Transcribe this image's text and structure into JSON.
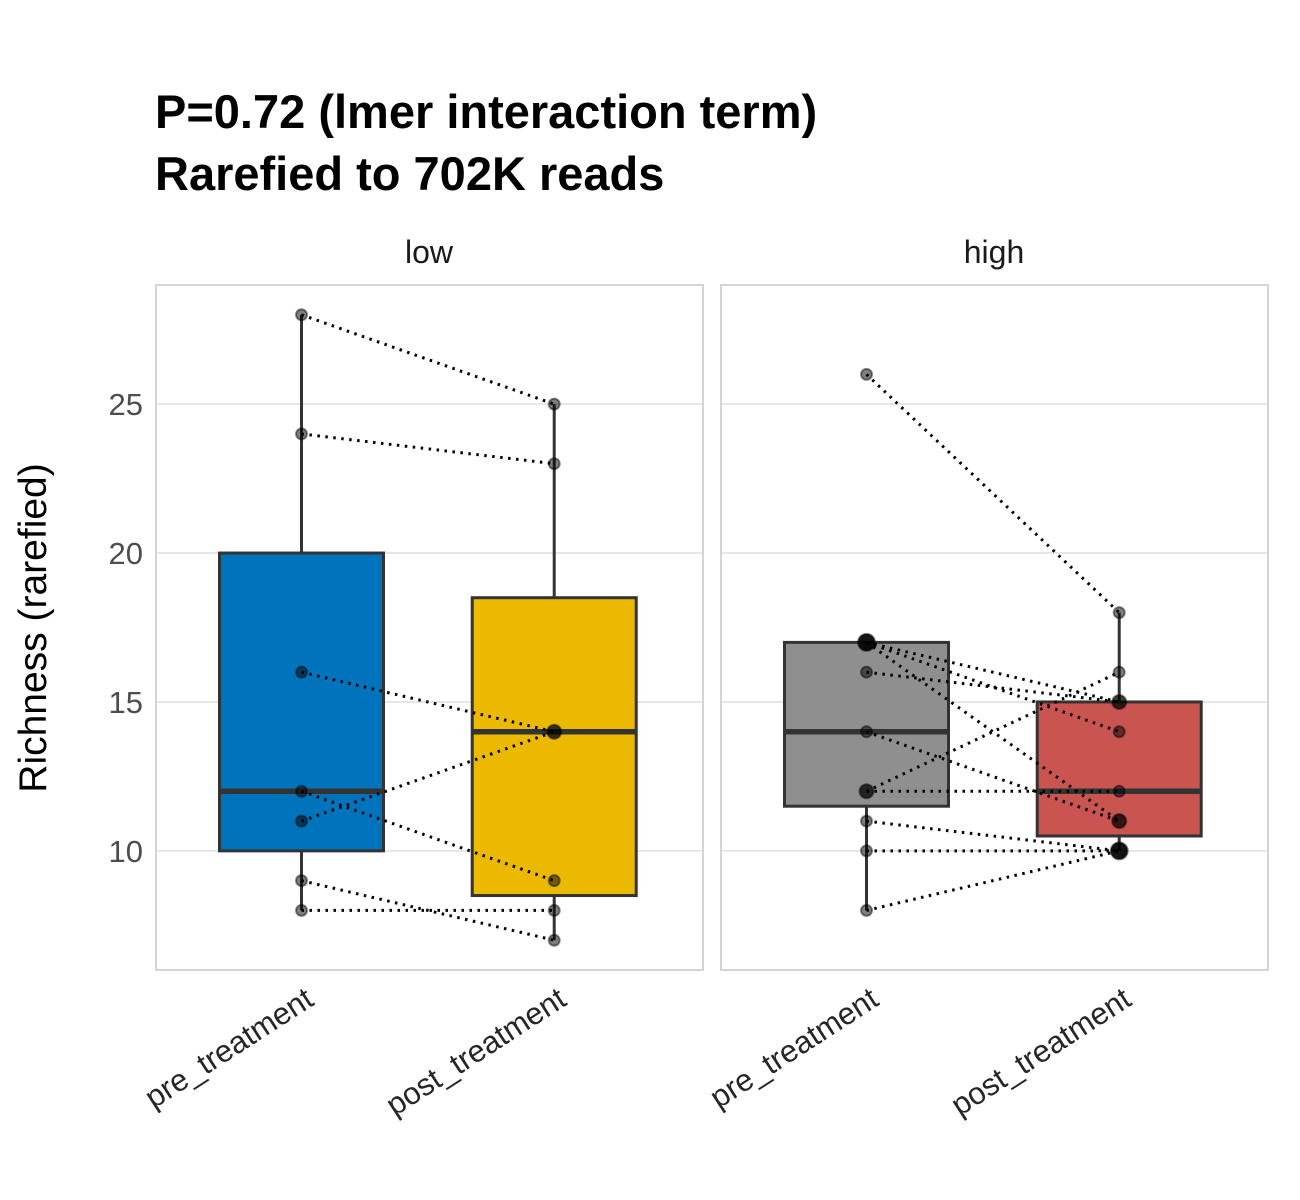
{
  "chart_data": {
    "type": "boxplot",
    "title": "P=0.72 (lmer interaction term)\nRarefied to 702K reads",
    "title_line1": "P=0.72 (lmer interaction term)",
    "title_line2": "Rarefied to 702K reads",
    "ylabel": "Richness (rarefied)",
    "xlabel": "",
    "y_ticks": [
      10,
      15,
      20,
      25
    ],
    "ylim": [
      6,
      29
    ],
    "grid": "major-horizontal",
    "x_categories": [
      "pre_treatment",
      "post_treatment"
    ],
    "legend": "none",
    "facets": [
      {
        "label": "low",
        "groups": [
          {
            "name": "pre_treatment",
            "color": "#0073BD",
            "box": {
              "q1": 10,
              "median": 12,
              "q3": 20,
              "whisker_low": 8,
              "whisker_high": 28
            },
            "values": [
              28,
              24,
              16,
              12,
              11,
              9,
              8
            ]
          },
          {
            "name": "post_treatment",
            "color": "#EAB900",
            "box": {
              "q1": 8.5,
              "median": 14,
              "q3": 18.5,
              "whisker_low": 7,
              "whisker_high": 25
            },
            "values": [
              25,
              23,
              14,
              9,
              14,
              7,
              8
            ]
          }
        ],
        "pairs": [
          [
            28,
            25
          ],
          [
            24,
            23
          ],
          [
            16,
            14
          ],
          [
            12,
            9
          ],
          [
            11,
            14
          ],
          [
            9,
            7
          ],
          [
            8,
            8
          ]
        ]
      },
      {
        "label": "high",
        "groups": [
          {
            "name": "pre_treatment",
            "color": "#8F8F8F",
            "box": {
              "q1": 11.5,
              "median": 14,
              "q3": 17,
              "whisker_low": 8,
              "whisker_high": 17
            },
            "values": [
              26,
              17,
              17,
              17,
              16,
              14,
              12,
              12,
              11,
              10,
              8
            ]
          },
          {
            "name": "post_treatment",
            "color": "#C95450",
            "box": {
              "q1": 10.5,
              "median": 12,
              "q3": 15,
              "whisker_low": 10,
              "whisker_high": 18
            },
            "values": [
              18,
              15,
              14,
              11,
              15,
              11,
              12,
              16,
              10,
              10,
              10
            ]
          }
        ],
        "pairs": [
          [
            26,
            18
          ],
          [
            17,
            15
          ],
          [
            17,
            14
          ],
          [
            17,
            11
          ],
          [
            16,
            15
          ],
          [
            14,
            11
          ],
          [
            12,
            12
          ],
          [
            12,
            16
          ],
          [
            11,
            10
          ],
          [
            10,
            10
          ],
          [
            8,
            10
          ]
        ]
      }
    ],
    "style": {
      "box_stroke": "#333333",
      "gridline_color": "#e6e6e6",
      "panel_border_color": "#d4d4d4",
      "point_color": "#000000",
      "pair_line_color": "#000000",
      "background": "#ffffff"
    }
  }
}
